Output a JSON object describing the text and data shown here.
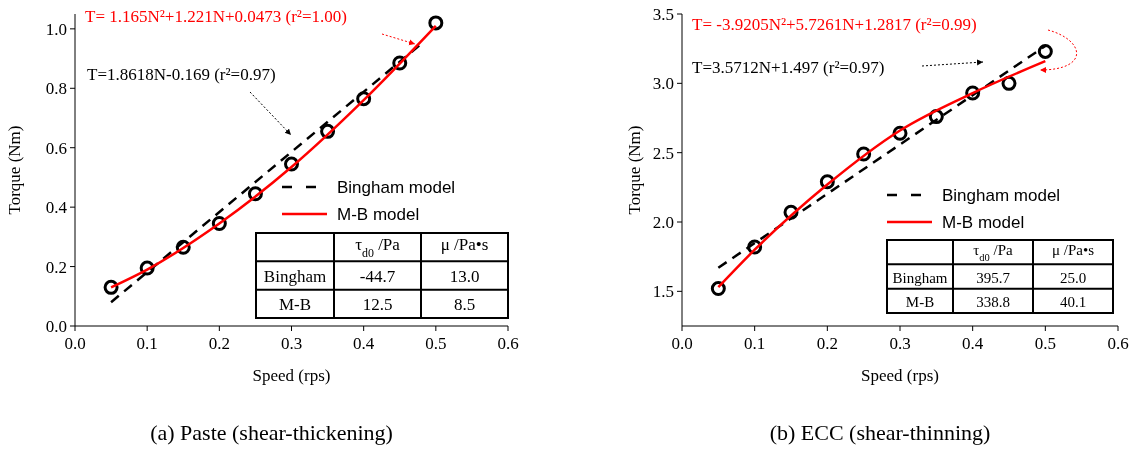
{
  "chart_data": [
    {
      "type": "scatter",
      "title": "(a) Paste (shear-thickening)",
      "xlabel": "Speed (rps)",
      "ylabel": "Torque (Nm)",
      "xlim": [
        0,
        0.6
      ],
      "ylim": [
        0,
        1.05
      ],
      "xticks": [
        {
          "value": 0,
          "label": "0.0"
        },
        0.1,
        0.2,
        0.3,
        0.4,
        0.5,
        0.6
      ],
      "yticks": [
        {
          "value": 0,
          "label": "0.0"
        },
        0.2,
        0.4,
        0.6,
        0.8,
        {
          "value": 1,
          "label": "1.0"
        }
      ],
      "legend": "right",
      "series": [
        {
          "marker": "circle",
          "color": "#000000",
          "x": [
            0.05,
            0.1,
            0.15,
            0.2,
            0.25,
            0.3,
            0.35,
            0.4,
            0.45,
            0.5
          ],
          "values": [
            0.13,
            0.195,
            0.265,
            0.345,
            0.445,
            0.545,
            0.655,
            0.765,
            0.885,
            1.02
          ]
        },
        {
          "type": "line",
          "name": "Bingham model",
          "color": "#000000",
          "line_style": "dashed",
          "x": [
            0.05,
            0.48
          ],
          "values": [
            0.08,
            0.95
          ]
        },
        {
          "type": "line",
          "name": "M-B model",
          "color": "#ff0000",
          "line_style": "solid",
          "x": [
            0.05,
            0.1,
            0.2,
            0.3,
            0.4,
            0.5
          ],
          "values": [
            0.13,
            0.19,
            0.345,
            0.535,
            0.76,
            1.01
          ]
        }
      ],
      "annotations": [
        "T= 1.165N²+1.221N+0.0473 (r²=1.00)",
        "T=1.8618N-0.169 (r²=0.97)",
        "τ$_{d0}$ /Pa",
        "μ /Pa•s",
        "Bingham",
        "-44.7",
        "13.0",
        "M-B",
        "12.5",
        "8.5"
      ]
    },
    {
      "type": "scatter",
      "title": "(b) ECC (shear-thinning)",
      "xlabel": "Speed (rps)",
      "ylabel": "Torque (Nm)",
      "xlim": [
        0,
        0.6
      ],
      "ylim": [
        1.25,
        3.5
      ],
      "xticks": [
        {
          "value": 0,
          "label": "0.0"
        },
        0.1,
        0.2,
        0.3,
        0.4,
        0.5,
        0.6
      ],
      "yticks": [
        1.5,
        {
          "value": 2,
          "label": "2.0"
        },
        2.5,
        {
          "value": 3,
          "label": "3.0"
        },
        3.5
      ],
      "legend": "right",
      "series": [
        {
          "marker": "circle",
          "color": "#000000",
          "x": [
            0.05,
            0.1,
            0.15,
            0.2,
            0.25,
            0.3,
            0.35,
            0.4,
            0.45,
            0.5
          ],
          "values": [
            1.52,
            1.82,
            2.07,
            2.29,
            2.49,
            2.64,
            2.76,
            2.93,
            3.0,
            3.23
          ]
        },
        {
          "type": "line",
          "name": "Bingham model",
          "color": "#000000",
          "line_style": "dashed",
          "x": [
            0.05,
            0.5
          ],
          "values": [
            1.67,
            3.27
          ]
        },
        {
          "type": "line",
          "name": "M-B model",
          "color": "#ff0000",
          "line_style": "solid",
          "x": [
            0.05,
            0.1,
            0.2,
            0.3,
            0.4,
            0.5
          ],
          "values": [
            1.53,
            1.8,
            2.27,
            2.66,
            2.93,
            3.16
          ]
        }
      ],
      "annotations": [
        "T= -3.9205N²+5.7261N+1.2817 (r²=0.99)",
        "T=3.5712N+1.497 (r²=0.97)",
        "τ$_{d0}$ /Pa",
        "μ /Pa•s",
        "Bingham",
        "395.7",
        "25.0",
        "M-B",
        "338.8",
        "40.1"
      ]
    }
  ]
}
